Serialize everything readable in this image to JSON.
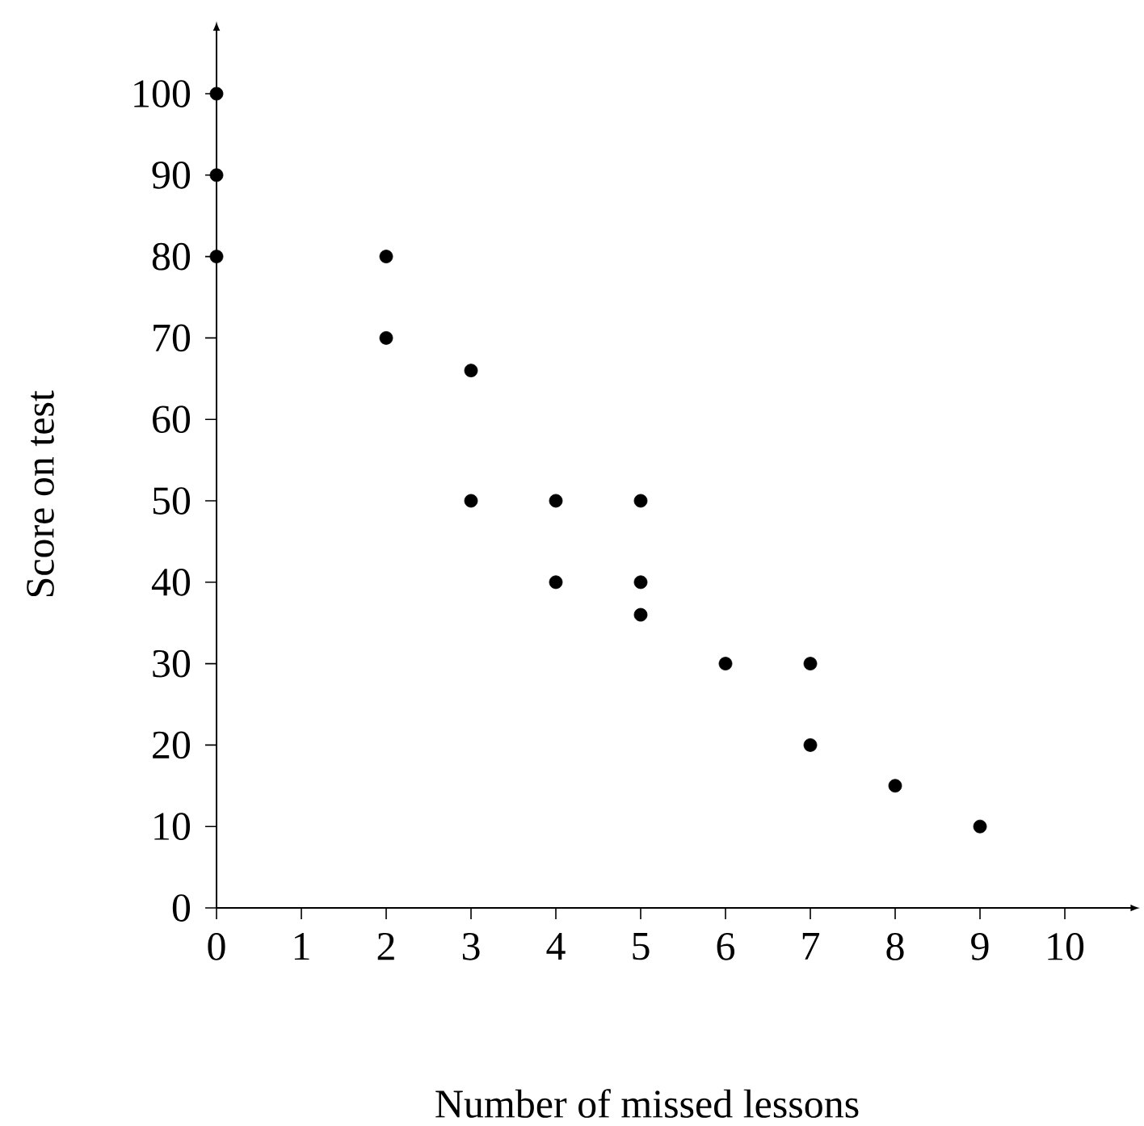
{
  "chart_data": {
    "type": "scatter",
    "xlabel": "Number of missed lessons",
    "ylabel": "Score on test",
    "x": [
      0,
      0,
      0,
      2,
      2,
      3,
      3,
      4,
      4,
      5,
      5,
      5,
      6,
      7,
      7,
      8,
      9
    ],
    "values": [
      100,
      90,
      80,
      80,
      70,
      66,
      50,
      50,
      40,
      50,
      40,
      36,
      30,
      30,
      20,
      15,
      10
    ],
    "color": "#000000",
    "marker": "circle",
    "xlim": [
      0,
      10.8
    ],
    "ylim": [
      0,
      108
    ],
    "xticks": [
      0,
      1,
      2,
      3,
      4,
      5,
      6,
      7,
      8,
      9,
      10
    ],
    "yticks": [
      0,
      10,
      20,
      30,
      40,
      50,
      60,
      70,
      80,
      90,
      100
    ]
  }
}
